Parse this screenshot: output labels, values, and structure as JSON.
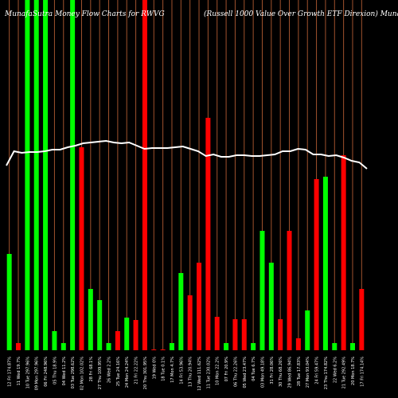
{
  "chart_data": {
    "type": "bar",
    "title_left": "MunafaSutra  Money Flow  Charts for RWVG",
    "title_right": "(Russell 1000  Value   Over Growth ETF Direxion) MunafaSutra.com",
    "ylim": [
      0,
      440
    ],
    "colors": {
      "up": "#00ff00",
      "down": "#ff0000",
      "grid": "#a0522d",
      "line": "#ffffff",
      "background": "#000000"
    },
    "bars": [
      {
        "label": "12 Fri 174.87%",
        "value": 121,
        "color": "up"
      },
      {
        "label": "11 Wed 19.7%",
        "value": 9,
        "color": "down"
      },
      {
        "label": "10 Tue 297.96%",
        "value": 440,
        "color": "up"
      },
      {
        "label": "09 Mon 297.96%",
        "value": 440,
        "color": "up"
      },
      {
        "label": "06 Fri 248.96%",
        "value": 440,
        "color": "up"
      },
      {
        "label": "05 Thu 18.9%",
        "value": 24,
        "color": "up"
      },
      {
        "label": "04 Wed 11.2%",
        "value": 9,
        "color": "up"
      },
      {
        "label": "03 Tue 298.62%",
        "value": 440,
        "color": "up"
      },
      {
        "label": "02 Mon 102.02%",
        "value": 255,
        "color": "down"
      },
      {
        "label": "28 Fri 68.1%",
        "value": 77,
        "color": "up"
      },
      {
        "label": "27 Thu 109.95%",
        "value": 63,
        "color": "up"
      },
      {
        "label": "26 Wed 2.2%",
        "value": 9,
        "color": "up"
      },
      {
        "label": "25 Tue 24.16%",
        "value": 24,
        "color": "down"
      },
      {
        "label": "24 Mon 24.24%",
        "value": 41,
        "color": "up"
      },
      {
        "label": "21 Fri 22.22%",
        "value": 38,
        "color": "down"
      },
      {
        "label": "20 Thu 301.95%",
        "value": 440,
        "color": "down"
      },
      {
        "label": "19 Wed 0%",
        "value": 1,
        "color": "down"
      },
      {
        "label": "18 Tue 0.1%",
        "value": 1,
        "color": "down"
      },
      {
        "label": "17 Mon 4.7%",
        "value": 9,
        "color": "up"
      },
      {
        "label": "14 Fri 53.96%",
        "value": 97,
        "color": "up"
      },
      {
        "label": "13 Thu 20.94%",
        "value": 69,
        "color": "down"
      },
      {
        "label": "12 Wed 111.62%",
        "value": 110,
        "color": "down"
      },
      {
        "label": "11 Tue 230.02%",
        "value": 292,
        "color": "down"
      },
      {
        "label": "10 Mon 22.2%",
        "value": 42,
        "color": "down"
      },
      {
        "label": "07 Fri 20.9%",
        "value": 9,
        "color": "up"
      },
      {
        "label": "06 Thu 22.26%",
        "value": 39,
        "color": "down"
      },
      {
        "label": "05 Wed 23.47%",
        "value": 39,
        "color": "down"
      },
      {
        "label": "04 Tue 6.7%",
        "value": 9,
        "color": "up"
      },
      {
        "label": "03 Mon 49.18%",
        "value": 150,
        "color": "up"
      },
      {
        "label": "31 Fri 28.06%",
        "value": 110,
        "color": "up"
      },
      {
        "label": "30 Thu 68.26%",
        "value": 39,
        "color": "down"
      },
      {
        "label": "29 Wed 86.94%",
        "value": 150,
        "color": "down"
      },
      {
        "label": "28 Tue 17.83%",
        "value": 15,
        "color": "down"
      },
      {
        "label": "27 Mon 93.04%",
        "value": 50,
        "color": "up"
      },
      {
        "label": "24 Fri 59.47%",
        "value": 215,
        "color": "down"
      },
      {
        "label": "23 Thu 174.82%",
        "value": 218,
        "color": "up"
      },
      {
        "label": "22 Wed 6.2%",
        "value": 9,
        "color": "up"
      },
      {
        "label": "21 Tue 292.49%",
        "value": 245,
        "color": "down"
      },
      {
        "label": "20 Mon 18.7%",
        "value": 9,
        "color": "up"
      },
      {
        "label": "17 Fri 174.14%",
        "value": 77,
        "color": "down"
      }
    ],
    "line_series": [
      {
        "x": 0,
        "y": 232
      },
      {
        "x": 1,
        "y": 250
      },
      {
        "x": 2,
        "y": 248
      },
      {
        "x": 3,
        "y": 249
      },
      {
        "x": 4,
        "y": 249
      },
      {
        "x": 5,
        "y": 250
      },
      {
        "x": 6,
        "y": 252
      },
      {
        "x": 7,
        "y": 252
      },
      {
        "x": 8,
        "y": 255
      },
      {
        "x": 9,
        "y": 257
      },
      {
        "x": 10,
        "y": 260
      },
      {
        "x": 11,
        "y": 261
      },
      {
        "x": 12,
        "y": 262
      },
      {
        "x": 13,
        "y": 263
      },
      {
        "x": 14,
        "y": 261
      },
      {
        "x": 15,
        "y": 260
      },
      {
        "x": 16,
        "y": 261
      },
      {
        "x": 17,
        "y": 257
      },
      {
        "x": 18,
        "y": 253
      },
      {
        "x": 19,
        "y": 254
      },
      {
        "x": 20,
        "y": 254
      },
      {
        "x": 21,
        "y": 254
      },
      {
        "x": 22,
        "y": 255
      },
      {
        "x": 23,
        "y": 256
      },
      {
        "x": 24,
        "y": 253
      },
      {
        "x": 25,
        "y": 250
      },
      {
        "x": 26,
        "y": 244
      },
      {
        "x": 27,
        "y": 246
      },
      {
        "x": 28,
        "y": 243
      },
      {
        "x": 29,
        "y": 243
      },
      {
        "x": 30,
        "y": 245
      },
      {
        "x": 31,
        "y": 245
      },
      {
        "x": 32,
        "y": 244
      },
      {
        "x": 33,
        "y": 244
      },
      {
        "x": 34,
        "y": 245
      },
      {
        "x": 35,
        "y": 246
      },
      {
        "x": 36,
        "y": 250
      },
      {
        "x": 37,
        "y": 250
      },
      {
        "x": 38,
        "y": 253
      },
      {
        "x": 39,
        "y": 252
      },
      {
        "x": 40,
        "y": 246
      },
      {
        "x": 41,
        "y": 246
      },
      {
        "x": 42,
        "y": 244
      },
      {
        "x": 43,
        "y": 245
      },
      {
        "x": 44,
        "y": 242
      },
      {
        "x": 45,
        "y": 238
      },
      {
        "x": 46,
        "y": 236
      },
      {
        "x": 47,
        "y": 228
      }
    ],
    "grid": true
  }
}
